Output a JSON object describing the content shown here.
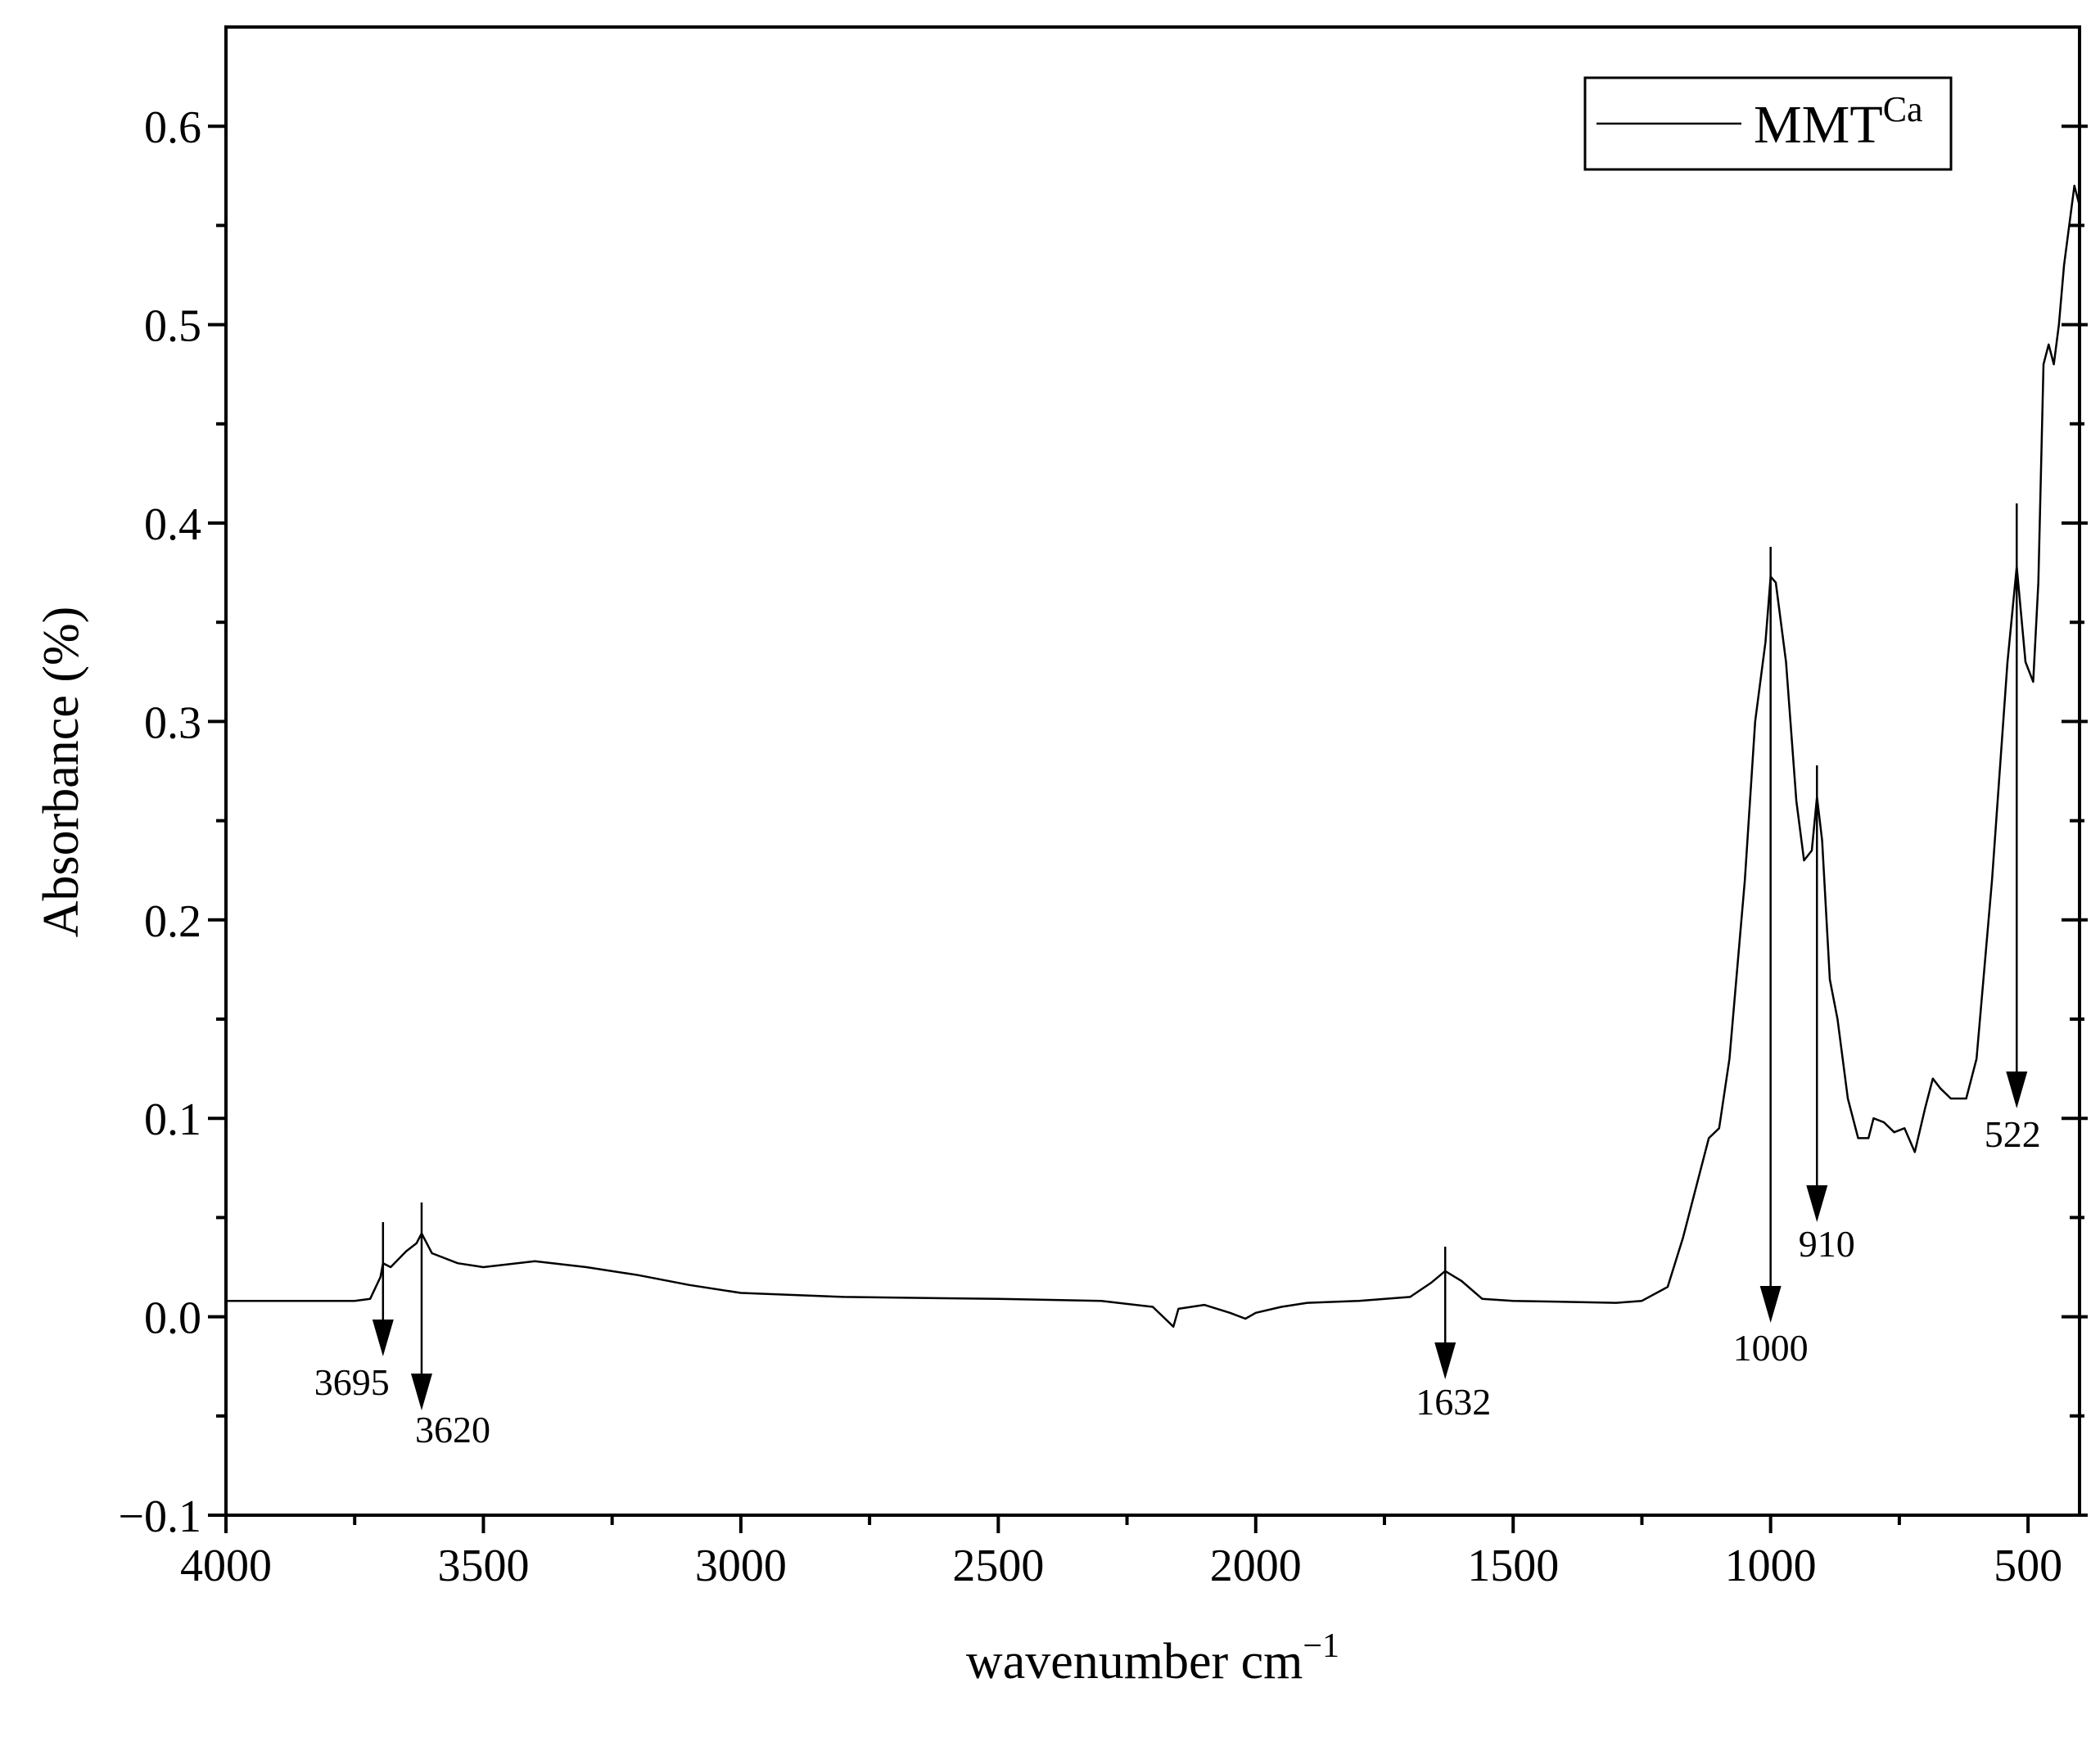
{
  "chart_data": {
    "type": "line",
    "xlabel": "wavenumber cm",
    "xlabel_superscript": "−1",
    "ylabel": "Absorbance (%)",
    "xlim": [
      4000,
      400
    ],
    "ylim": [
      -0.1,
      0.65
    ],
    "xticks": [
      4000,
      3500,
      3000,
      2500,
      2000,
      1500,
      1000,
      500
    ],
    "yticks": [
      {
        "value": -0.1,
        "label": "−0.1"
      },
      {
        "value": 0,
        "label": "0.0"
      },
      0.1,
      0.2,
      0.3,
      0.4,
      0.5,
      0.6
    ],
    "legend": "upper right",
    "x": [
      4000,
      3750,
      3720,
      3700,
      3695,
      3680,
      3650,
      3630,
      3620,
      3600,
      3550,
      3500,
      3400,
      3300,
      3200,
      3100,
      3000,
      2800,
      2500,
      2300,
      2200,
      2160,
      2150,
      2100,
      2050,
      2020,
      2000,
      1950,
      1900,
      1800,
      1700,
      1660,
      1632,
      1600,
      1560,
      1500,
      1300,
      1250,
      1200,
      1170,
      1140,
      1120,
      1100,
      1080,
      1050,
      1030,
      1010,
      1000,
      990,
      970,
      950,
      935,
      920,
      910,
      900,
      885,
      870,
      850,
      830,
      810,
      800,
      780,
      760,
      740,
      720,
      700,
      685,
      670,
      650,
      620,
      600,
      570,
      540,
      522,
      505,
      490,
      480,
      470,
      460,
      450,
      440,
      430,
      420,
      410,
      400
    ],
    "series": [
      {
        "name": "MMT",
        "name_superscript": "Ca",
        "color": "#000000",
        "values": [
          0.008,
          0.008,
          0.009,
          0.02,
          0.027,
          0.025,
          0.033,
          0.037,
          0.042,
          0.032,
          0.027,
          0.025,
          0.028,
          0.025,
          0.021,
          0.016,
          0.012,
          0.01,
          0.009,
          0.008,
          0.005,
          -0.005,
          0.004,
          0.006,
          0.002,
          -0.001,
          0.002,
          0.005,
          0.007,
          0.008,
          0.01,
          0.017,
          0.023,
          0.018,
          0.009,
          0.008,
          0.007,
          0.008,
          0.015,
          0.04,
          0.07,
          0.09,
          0.095,
          0.13,
          0.22,
          0.3,
          0.34,
          0.373,
          0.37,
          0.33,
          0.26,
          0.23,
          0.235,
          0.262,
          0.24,
          0.17,
          0.15,
          0.11,
          0.09,
          0.09,
          0.1,
          0.098,
          0.093,
          0.095,
          0.083,
          0.105,
          0.12,
          0.115,
          0.11,
          0.11,
          0.13,
          0.22,
          0.33,
          0.378,
          0.33,
          0.32,
          0.37,
          0.48,
          0.49,
          0.48,
          0.5,
          0.53,
          0.55,
          0.57,
          0.56
        ]
      }
    ],
    "peaks": [
      3695,
      3620,
      1632,
      1000,
      910,
      522
    ]
  }
}
